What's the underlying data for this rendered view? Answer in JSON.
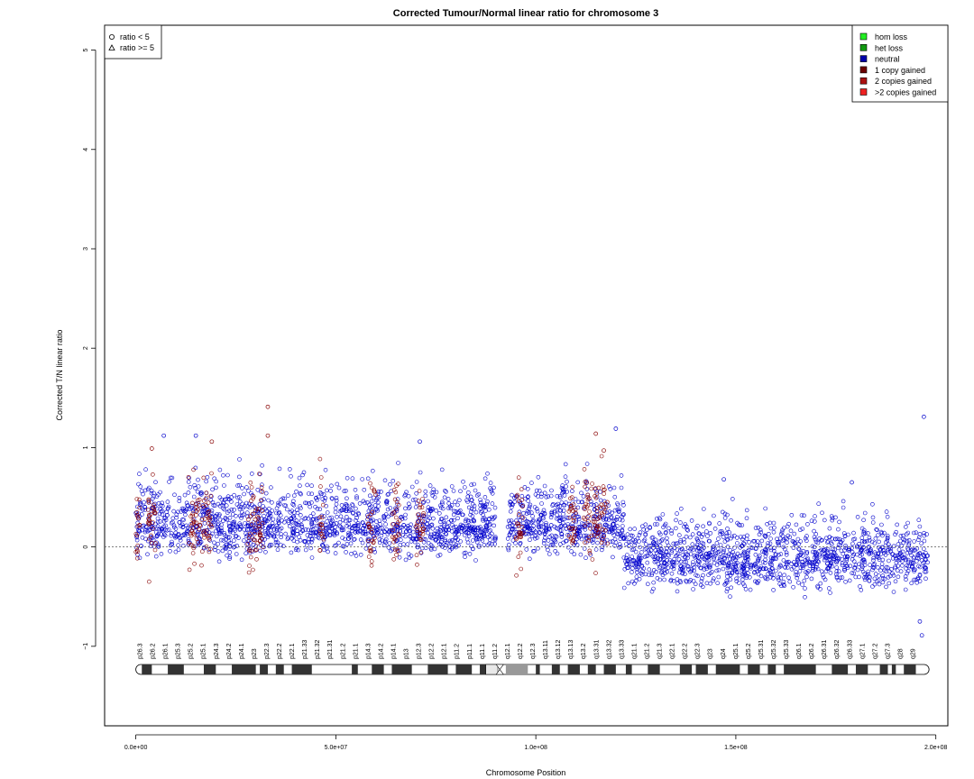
{
  "chart_data": {
    "type": "scatter",
    "title": "Corrected Tumour/Normal linear ratio for chromosome  3",
    "xlabel": "Chromosome Position",
    "ylabel": "Corrected T/N linear ratio",
    "xlim": [
      -7800000,
      203000000
    ],
    "ylim": [
      -1.8,
      5.25
    ],
    "x_ticks": [
      0,
      50000000,
      100000000,
      150000000,
      200000000
    ],
    "x_tick_labels": [
      "0.0e+00",
      "5.0e+07",
      "1.0e+08",
      "1.5e+08",
      "2.0e+08"
    ],
    "y_ticks": [
      -1,
      0,
      1,
      2,
      3,
      4,
      5
    ],
    "y_tick_labels": [
      "−1",
      "0",
      "1",
      "2",
      "3",
      "4",
      "5"
    ],
    "reference_line_y": 0,
    "shape_legend": {
      "position": "top-left",
      "entries": [
        {
          "shape": "circle",
          "label": "ratio < 5"
        },
        {
          "shape": "triangle",
          "label": "ratio >= 5"
        }
      ]
    },
    "color_legend": {
      "position": "top-right",
      "entries": [
        {
          "label": "hom loss",
          "color": "#22ee22"
        },
        {
          "label": "het loss",
          "color": "#119911"
        },
        {
          "label": "neutral",
          "color": "#0000aa"
        },
        {
          "label": "1 copy gained",
          "color": "#6b0000"
        },
        {
          "label": "2 copies gained",
          "color": "#aa1111"
        },
        {
          "label": ">2 copies gained",
          "color": "#ee2222"
        }
      ]
    },
    "series": [
      {
        "state": "neutral",
        "color": "#0000cc",
        "segments": [
          {
            "x_start": 0,
            "x_end": 90000000,
            "center": 0.22,
            "spread_low": 0.32,
            "spread_high": 0.52
          },
          {
            "x_start": 93000000,
            "x_end": 122000000,
            "center": 0.22,
            "spread_low": 0.3,
            "spread_high": 0.5
          },
          {
            "x_start": 122000000,
            "x_end": 198000000,
            "center": -0.1,
            "spread_low": 0.35,
            "spread_high": 0.45
          }
        ],
        "notable_points": [
          {
            "x": 7000000,
            "y": 1.12
          },
          {
            "x": 15000000,
            "y": 1.12
          },
          {
            "x": 71000000,
            "y": 1.06
          },
          {
            "x": 120000000,
            "y": 1.19
          },
          {
            "x": 197000000,
            "y": 1.31
          },
          {
            "x": 196000000,
            "y": -0.75
          },
          {
            "x": 196500000,
            "y": -0.89
          },
          {
            "x": 147000000,
            "y": 0.68
          },
          {
            "x": 179000000,
            "y": 0.65
          }
        ]
      },
      {
        "state": "1 copy gained",
        "color": "#880000",
        "x_ranges": [
          [
            0,
            1000000
          ],
          [
            3000000,
            5000000
          ],
          [
            13000000,
            19000000
          ],
          [
            28000000,
            32000000
          ],
          [
            46000000,
            47000000
          ],
          [
            58000000,
            60000000
          ],
          [
            64000000,
            66000000
          ],
          [
            70000000,
            72000000
          ],
          [
            95000000,
            97000000
          ],
          [
            108000000,
            110000000
          ],
          [
            112000000,
            118000000
          ]
        ],
        "notable_points": [
          {
            "x": 33000000,
            "y": 1.41
          },
          {
            "x": 33000000,
            "y": 1.12
          },
          {
            "x": 19000000,
            "y": 1.06
          },
          {
            "x": 115000000,
            "y": 1.14
          },
          {
            "x": 117000000,
            "y": 0.97
          },
          {
            "x": 4000000,
            "y": 0.99
          }
        ]
      }
    ],
    "cytobands": {
      "labels": [
        "p26.3",
        "p26.2",
        "p26.1",
        "p25.3",
        "p25.2",
        "p25.1",
        "p24.3",
        "p24.2",
        "p24.1",
        "p23",
        "p22.3",
        "p22.2",
        "p22.1",
        "p21.33",
        "p21.32",
        "p21.31",
        "p21.2",
        "p21.1",
        "p14.3",
        "p14.2",
        "p14.1",
        "p13",
        "p12.3",
        "p12.2",
        "p12.1",
        "p11.2",
        "p11.1",
        "q11.1",
        "q11.2",
        "q12.1",
        "q12.2",
        "q12.3",
        "q13.11",
        "q13.12",
        "q13.13",
        "q13.2",
        "q13.31",
        "q13.32",
        "q13.33",
        "q21.1",
        "q21.2",
        "q21.3",
        "q22.1",
        "q22.2",
        "q22.3",
        "q23",
        "q24",
        "q25.1",
        "q25.2",
        "q25.31",
        "q25.32",
        "q25.33",
        "q26.1",
        "q26.2",
        "q26.31",
        "q26.32",
        "q26.33",
        "q27.1",
        "q27.2",
        "q27.3",
        "q28",
        "q29"
      ],
      "centromere_x": 91000000
    }
  }
}
